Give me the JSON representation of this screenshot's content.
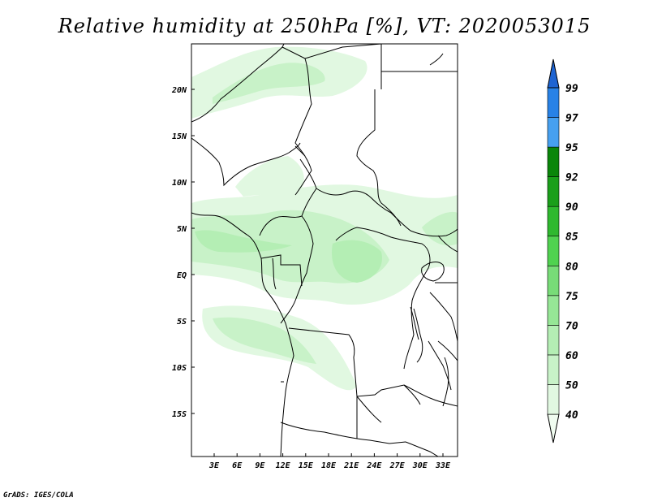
{
  "title": "Relative humidity at 250hPa [%], VT: 2020053015",
  "credit": "GrADS: IGES/COLA",
  "lat_ticks": [
    "20N",
    "15N",
    "10N",
    "5N",
    "EQ",
    "5S",
    "10S",
    "15S"
  ],
  "lon_ticks": [
    "3E",
    "6E",
    "9E",
    "12E",
    "15E",
    "18E",
    "21E",
    "24E",
    "27E",
    "30E",
    "33E"
  ],
  "colorbar": {
    "levels": [
      "40",
      "50",
      "60",
      "70",
      "75",
      "80",
      "85",
      "90",
      "92",
      "95",
      "97",
      "99"
    ],
    "colors": [
      "#f0fcf0",
      "#e1f8e1",
      "#c8f2c8",
      "#b4eeb4",
      "#96e696",
      "#78dc78",
      "#50d250",
      "#2fb92f",
      "#1a9f1a",
      "#0a860a",
      "#46a0f0",
      "#2882e6",
      "#1e64d2"
    ]
  }
}
